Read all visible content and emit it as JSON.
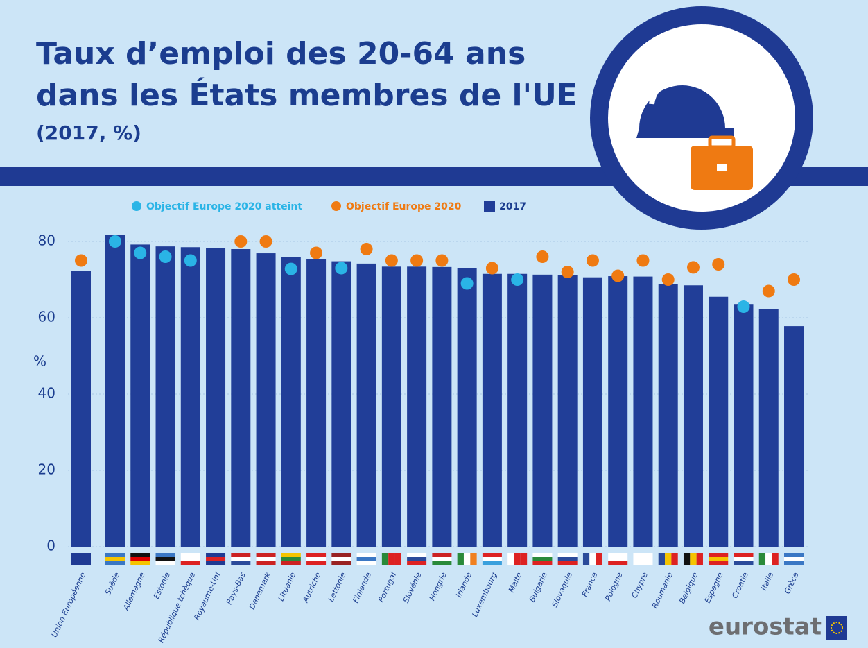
{
  "chart_data": {
    "type": "bar",
    "title_lines": [
      "Taux d’emploi des 20-64 ans",
      "dans les États membres de l'UE"
    ],
    "subtitle": "(2017, %)",
    "y_label": "%",
    "source_logo": "eurostat",
    "categories": [
      "Union Européenne",
      "Suède",
      "Allemagne",
      "Estonie",
      "République tchèque",
      "Royaume-Uni",
      "Pays-Bas",
      "Danemark",
      "Lituanie",
      "Autriche",
      "Lettonie",
      "Finlande",
      "Portugal",
      "Slovénie",
      "Hongrie",
      "Irlande",
      "Luxembourg",
      "Malte",
      "Bulgarie",
      "Slovaquie",
      "France",
      "Pologne",
      "Chypre",
      "Roumanie",
      "Belgique",
      "Espagne",
      "Croatie",
      "Italie",
      "Grèce"
    ],
    "series": [
      {
        "name": "2017",
        "color": "#213e98",
        "values": [
          72.2,
          81.8,
          79.2,
          78.7,
          78.5,
          78.2,
          78.0,
          76.9,
          75.9,
          75.4,
          74.8,
          74.2,
          73.4,
          73.4,
          73.3,
          73.0,
          71.5,
          71.5,
          71.3,
          71.1,
          70.6,
          70.9,
          70.8,
          68.8,
          68.5,
          65.5,
          63.6,
          62.3,
          57.8
        ]
      },
      {
        "name": "Objectif Europe 2020 atteint",
        "color": "#2ab4e6",
        "values": [
          null,
          80,
          77,
          76,
          75,
          null,
          null,
          null,
          72.8,
          null,
          73,
          null,
          null,
          null,
          null,
          69,
          null,
          70,
          null,
          null,
          null,
          null,
          null,
          null,
          null,
          null,
          62.9,
          null,
          null
        ]
      },
      {
        "name": "Objectif Europe 2020",
        "color": "#ef7a12",
        "values": [
          75,
          null,
          null,
          null,
          null,
          null,
          80,
          80,
          null,
          77,
          null,
          78,
          75,
          75,
          75,
          null,
          73,
          null,
          76,
          72,
          75,
          71,
          75,
          70,
          73.2,
          74,
          null,
          67,
          70
        ]
      }
    ],
    "ylim": [
      0,
      85
    ],
    "yticks": [
      0,
      20,
      40,
      60,
      80
    ],
    "grid": true
  }
}
